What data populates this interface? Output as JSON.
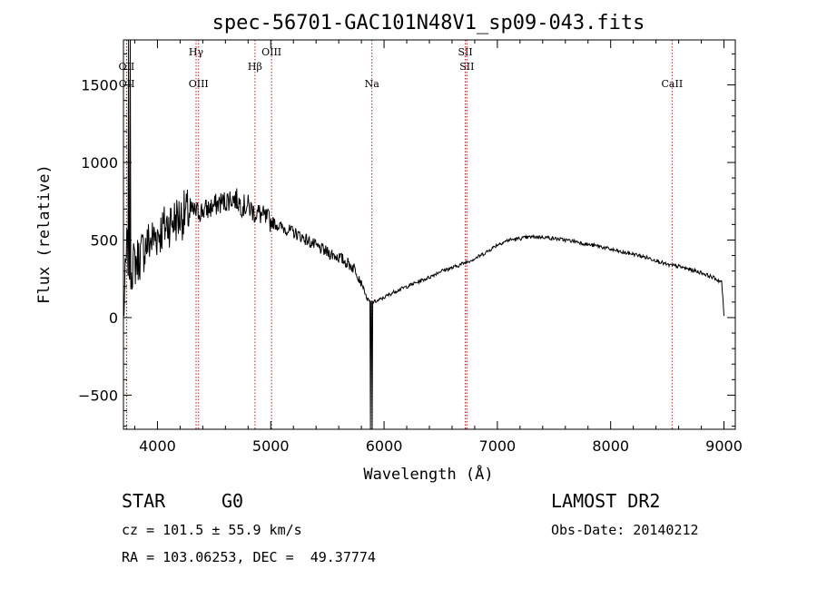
{
  "chart_data": {
    "type": "line",
    "title": "spec-56701-GAC101N48V1_sp09-043.fits",
    "xlabel": "Wavelength (Å)",
    "ylabel": "Flux (relative)",
    "xlim": [
      3700,
      9100
    ],
    "ylim": [
      -720,
      1790
    ],
    "xticks": [
      4000,
      5000,
      6000,
      7000,
      8000,
      9000
    ],
    "xtick_labels": [
      "4000",
      "5000",
      "6000",
      "7000",
      "8000",
      "9000"
    ],
    "yticks": [
      -500,
      0,
      500,
      1000,
      1500
    ],
    "ytick_labels": [
      "−500",
      "0",
      "500",
      "1000",
      "1500"
    ],
    "grid": false,
    "spectrum_profile": {
      "x": [
        3700,
        3730,
        3760,
        3800,
        3850,
        3900,
        3950,
        4000,
        4050,
        4100,
        4150,
        4200,
        4250,
        4300,
        4350,
        4400,
        4450,
        4500,
        4550,
        4600,
        4650,
        4700,
        4750,
        4800,
        4850,
        4900,
        4950,
        5000,
        5100,
        5200,
        5300,
        5400,
        5500,
        5600,
        5700,
        5750,
        5800,
        5850,
        5880,
        5900,
        5950,
        6000,
        6100,
        6200,
        6300,
        6400,
        6500,
        6600,
        6700,
        6800,
        6900,
        7000,
        7100,
        7200,
        7300,
        7400,
        7500,
        7600,
        7700,
        7800,
        7900,
        8000,
        8100,
        8200,
        8300,
        8400,
        8500,
        8600,
        8700,
        8800,
        8900,
        8950,
        8980,
        9000
      ],
      "y": [
        0,
        450,
        320,
        350,
        400,
        470,
        500,
        540,
        570,
        610,
        630,
        650,
        670,
        680,
        680,
        690,
        700,
        720,
        740,
        750,
        770,
        760,
        720,
        720,
        680,
        670,
        640,
        620,
        580,
        550,
        510,
        460,
        420,
        390,
        340,
        310,
        230,
        120,
        100,
        100,
        110,
        130,
        170,
        200,
        230,
        260,
        300,
        320,
        350,
        380,
        420,
        470,
        500,
        510,
        520,
        520,
        510,
        500,
        490,
        470,
        460,
        440,
        420,
        410,
        390,
        370,
        340,
        330,
        310,
        290,
        260,
        240,
        230,
        10
      ],
      "noise": [
        {
          "from": 3700,
          "to": 4300,
          "amplitude": 160
        },
        {
          "from": 4300,
          "to": 5000,
          "amplitude": 75
        },
        {
          "from": 5000,
          "to": 5800,
          "amplitude": 40
        },
        {
          "from": 5800,
          "to": 9000,
          "amplitude": 12
        }
      ],
      "spikes": [
        {
          "x": 3745,
          "y": 1790
        },
        {
          "x": 3760,
          "y": 1790
        },
        {
          "x": 5880,
          "y": -720
        },
        {
          "x": 5895,
          "y": -720
        }
      ]
    },
    "lines": [
      {
        "name": "OII",
        "x": 3727,
        "row": 1
      },
      {
        "name": "OII",
        "x": 3729,
        "row": 2
      },
      {
        "name": "Hγ",
        "x": 4341,
        "row": 0
      },
      {
        "name": "OIII",
        "x": 4363,
        "row": 2
      },
      {
        "name": "Hβ",
        "x": 4861,
        "row": 1
      },
      {
        "name": "OIII",
        "x": 5007,
        "row": 0
      },
      {
        "name": "Na",
        "x": 5893,
        "row": 2
      },
      {
        "name": "SII",
        "x": 6717,
        "row": 0
      },
      {
        "name": "SII",
        "x": 6731,
        "row": 1
      },
      {
        "name": "CaII",
        "x": 8542,
        "row": 2
      }
    ],
    "colors": {
      "spectrum": "#000000",
      "lines": "#b22222",
      "frame": "#000000"
    }
  },
  "info": {
    "class": "STAR",
    "subclass": "G0",
    "survey": "LAMOST DR2",
    "cz": "cz = 101.5 ± 55.9 km/s",
    "obs_date": "Obs-Date: 20140212",
    "coords": "RA = 103.06253, DEC =  49.37774"
  }
}
